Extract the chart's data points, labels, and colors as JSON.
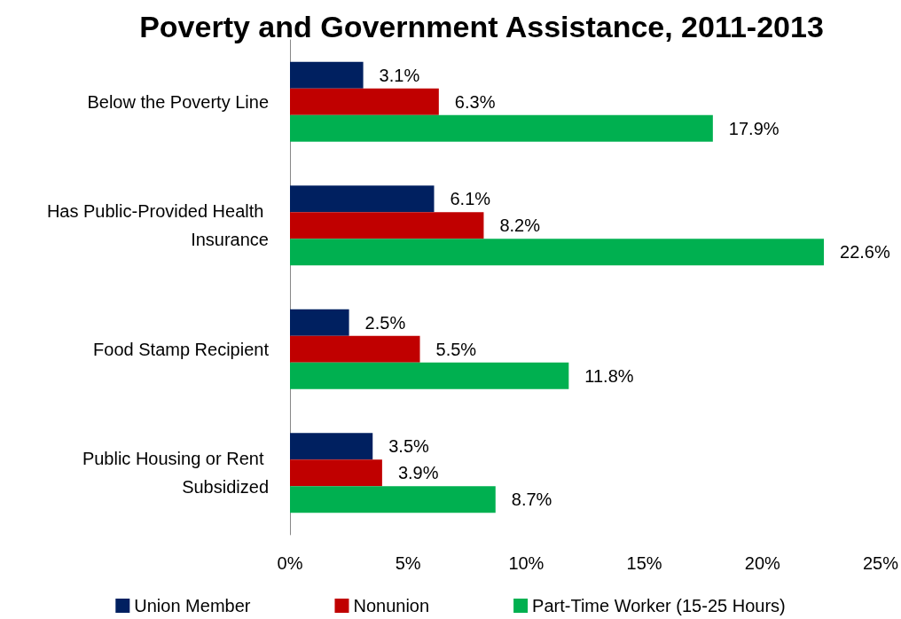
{
  "chart_data": {
    "type": "bar",
    "orientation": "horizontal",
    "title": "Poverty and Government Assistance, 2011-2013",
    "categories": [
      "Below the Poverty Line",
      "Has Public-Provided Health Insurance",
      "Food Stamp Recipient",
      "Public Housing or Rent Subsidized"
    ],
    "series": [
      {
        "name": "Union Member",
        "color": "#002060",
        "values": [
          3.1,
          6.1,
          2.5,
          3.5
        ],
        "value_labels": [
          "3.1%",
          "6.1%",
          "2.5%",
          "3.5%"
        ]
      },
      {
        "name": "Nonunion",
        "color": "#c00000",
        "values": [
          6.3,
          8.2,
          5.5,
          3.9
        ],
        "value_labels": [
          "6.3%",
          "8.2%",
          "5.5%",
          "3.9%"
        ]
      },
      {
        "name": "Part-Time Worker (15-25 Hours)",
        "color": "#00b050",
        "values": [
          17.9,
          22.6,
          11.8,
          8.7
        ],
        "value_labels": [
          "17.9%",
          "22.6%",
          "11.8%",
          "8.7%"
        ]
      }
    ],
    "xlim": [
      0,
      25
    ],
    "xticks": [
      {
        "value": 0,
        "label": "0%"
      },
      {
        "value": 5,
        "label": "5%"
      },
      {
        "value": 10,
        "label": "10%"
      },
      {
        "value": 15,
        "label": "15%"
      },
      {
        "value": 20,
        "label": "20%"
      },
      {
        "value": 25,
        "label": "25%"
      }
    ],
    "grid": false,
    "legend": "bottom"
  }
}
